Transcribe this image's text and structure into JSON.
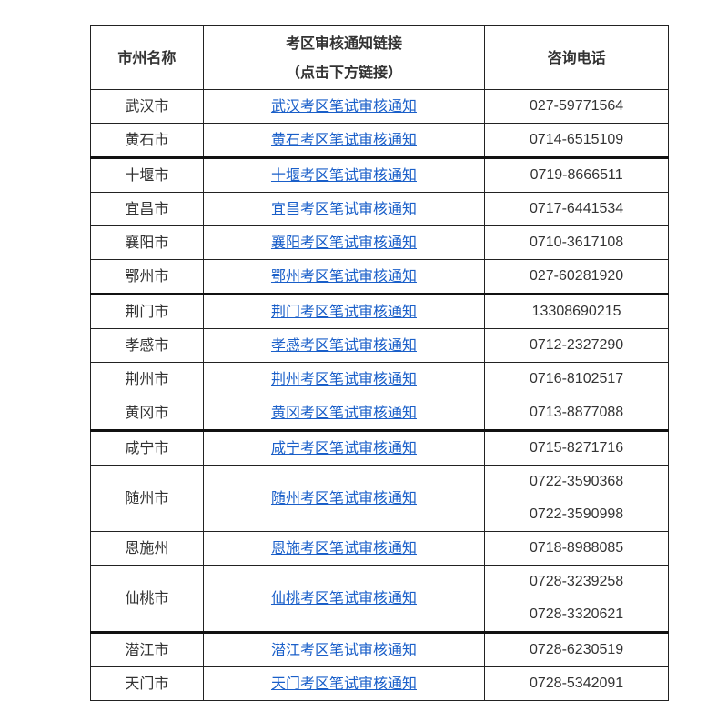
{
  "header": {
    "col1": "市州名称",
    "col2_line1": "考区审核通知链接",
    "col2_line2": "（点击下方链接）",
    "col3": "咨询电话"
  },
  "link_color": "#1a5fc9",
  "rows": [
    {
      "city": "武汉市",
      "link": "武汉考区笔试审核通知",
      "phones": [
        "027-59771564"
      ]
    },
    {
      "city": "黄石市",
      "link": "黄石考区笔试审核通知",
      "phones": [
        "0714-6515109"
      ]
    },
    {
      "city": "十堰市",
      "link": "十堰考区笔试审核通知",
      "phones": [
        "0719-8666511"
      ],
      "thick": true
    },
    {
      "city": "宜昌市",
      "link": "宜昌考区笔试审核通知",
      "phones": [
        "0717-6441534"
      ]
    },
    {
      "city": "襄阳市",
      "link": "襄阳考区笔试审核通知",
      "phones": [
        "0710-3617108"
      ]
    },
    {
      "city": "鄂州市",
      "link": "鄂州考区笔试审核通知",
      "phones": [
        "027-60281920"
      ]
    },
    {
      "city": "荆门市",
      "link": "荆门考区笔试审核通知",
      "phones": [
        "13308690215"
      ],
      "thick": true
    },
    {
      "city": "孝感市",
      "link": "孝感考区笔试审核通知",
      "phones": [
        "0712-2327290"
      ]
    },
    {
      "city": "荆州市",
      "link": "荆州考区笔试审核通知",
      "phones": [
        "0716-8102517"
      ]
    },
    {
      "city": "黄冈市",
      "link": "黄冈考区笔试审核通知",
      "phones": [
        "0713-8877088"
      ]
    },
    {
      "city": "咸宁市",
      "link": "咸宁考区笔试审核通知",
      "phones": [
        "0715-8271716"
      ],
      "thick": true
    },
    {
      "city": "随州市",
      "link": "随州考区笔试审核通知",
      "phones": [
        "0722-3590368",
        "0722-3590998"
      ]
    },
    {
      "city": "恩施州",
      "link": "恩施考区笔试审核通知",
      "phones": [
        "0718-8988085"
      ]
    },
    {
      "city": "仙桃市",
      "link": "仙桃考区笔试审核通知",
      "phones": [
        "0728-3239258",
        "0728-3320621"
      ]
    },
    {
      "city": "潜江市",
      "link": "潜江考区笔试审核通知",
      "phones": [
        "0728-6230519"
      ],
      "thick": true
    },
    {
      "city": "天门市",
      "link": "天门考区笔试审核通知",
      "phones": [
        "0728-5342091"
      ]
    }
  ]
}
